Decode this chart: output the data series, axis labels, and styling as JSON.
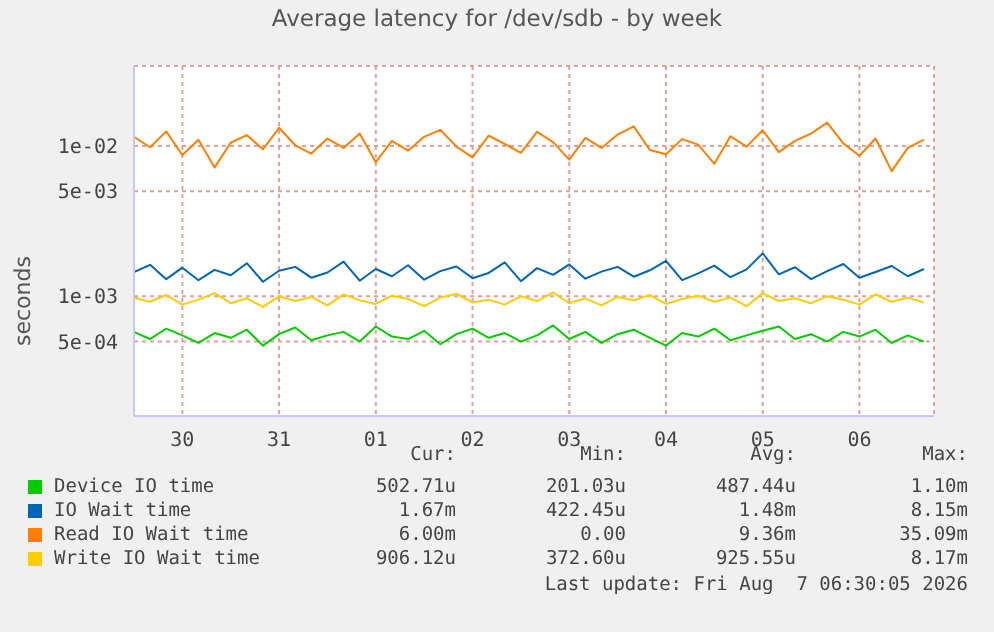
{
  "chart_data": {
    "type": "line",
    "title": "Average latency for /dev/sdb - by week",
    "ylabel": "seconds",
    "log": "y",
    "grid": true,
    "legend": "bottom",
    "marker": "none",
    "x": [
      "2026-07-30T00:00",
      "2026-07-30T04:00",
      "2026-07-30T08:00",
      "2026-07-30T12:00",
      "2026-07-30T16:00",
      "2026-07-30T20:00",
      "2026-07-31T00:00",
      "2026-07-31T04:00",
      "2026-07-31T08:00",
      "2026-07-31T12:00",
      "2026-07-31T16:00",
      "2026-07-31T20:00",
      "2026-08-01T00:00",
      "2026-08-01T04:00",
      "2026-08-01T08:00",
      "2026-08-01T12:00",
      "2026-08-01T16:00",
      "2026-08-01T20:00",
      "2026-08-02T00:00",
      "2026-08-02T04:00",
      "2026-08-02T08:00",
      "2026-08-02T12:00",
      "2026-08-02T16:00",
      "2026-08-02T20:00",
      "2026-08-03T00:00",
      "2026-08-03T04:00",
      "2026-08-03T08:00",
      "2026-08-03T12:00",
      "2026-08-03T16:00",
      "2026-08-03T20:00",
      "2026-08-04T00:00",
      "2026-08-04T04:00",
      "2026-08-04T08:00",
      "2026-08-04T12:00",
      "2026-08-04T16:00",
      "2026-08-04T20:00",
      "2026-08-05T00:00",
      "2026-08-05T04:00",
      "2026-08-05T08:00",
      "2026-08-05T12:00",
      "2026-08-05T16:00",
      "2026-08-05T20:00",
      "2026-08-06T00:00",
      "2026-08-06T04:00",
      "2026-08-06T08:00",
      "2026-08-06T12:00",
      "2026-08-06T16:00",
      "2026-08-06T20:00",
      "2026-08-07T00:00",
      "2026-08-07T04:00"
    ],
    "xlim": [
      "2026-07-30T00:00",
      "2026-08-07T06:30"
    ],
    "xticks": [
      {
        "value": "2026-07-30T12:00",
        "label": "30"
      },
      {
        "value": "2026-07-31T12:00",
        "label": "31"
      },
      {
        "value": "2026-08-01T12:00",
        "label": "01"
      },
      {
        "value": "2026-08-02T12:00",
        "label": "02"
      },
      {
        "value": "2026-08-03T12:00",
        "label": "03"
      },
      {
        "value": "2026-08-04T12:00",
        "label": "04"
      },
      {
        "value": "2026-08-05T12:00",
        "label": "05"
      },
      {
        "value": "2026-08-06T12:00",
        "label": "06"
      }
    ],
    "ylim": [
      0.00016,
      0.034
    ],
    "yticks": [
      {
        "value": 0.0005,
        "label": "5e-04"
      },
      {
        "value": 0.001,
        "label": "1e-03"
      },
      {
        "value": 0.005,
        "label": "5e-03"
      },
      {
        "value": 0.01,
        "label": "1e-02"
      }
    ],
    "series": [
      {
        "name": "Device IO time",
        "color": "#00cc00",
        "values": [
          0.00058,
          0.00052,
          0.00061,
          0.00055,
          0.00049,
          0.00057,
          0.00053,
          0.0006,
          0.00047,
          0.00056,
          0.00062,
          0.00051,
          0.00055,
          0.00058,
          0.0005,
          0.00063,
          0.00054,
          0.00052,
          0.00059,
          0.00048,
          0.00056,
          0.00061,
          0.00053,
          0.00057,
          0.0005,
          0.00055,
          0.00064,
          0.00052,
          0.00058,
          0.00049,
          0.00056,
          0.0006,
          0.00053,
          0.00047,
          0.00057,
          0.00054,
          0.00061,
          0.00051,
          0.00055,
          0.00059,
          0.00063,
          0.00052,
          0.00056,
          0.0005,
          0.00058,
          0.00054,
          0.0006,
          0.00049,
          0.00055,
          0.0005
        ]
      },
      {
        "name": "IO Wait time",
        "color": "#0066b3",
        "values": [
          0.00145,
          0.00162,
          0.0013,
          0.00155,
          0.00128,
          0.0015,
          0.00138,
          0.00166,
          0.00125,
          0.00148,
          0.00157,
          0.00133,
          0.00144,
          0.0017,
          0.00127,
          0.00152,
          0.00136,
          0.00161,
          0.00129,
          0.00147,
          0.00158,
          0.00132,
          0.00143,
          0.00168,
          0.00126,
          0.00154,
          0.00139,
          0.00163,
          0.00131,
          0.00146,
          0.00157,
          0.00135,
          0.00149,
          0.00172,
          0.00128,
          0.00142,
          0.0016,
          0.00134,
          0.00151,
          0.00193,
          0.0014,
          0.00156,
          0.0013,
          0.00147,
          0.00164,
          0.00133,
          0.00145,
          0.00159,
          0.00136,
          0.00152
        ]
      },
      {
        "name": "Read IO Wait time",
        "color": "#ff8000",
        "values": [
          0.0115,
          0.0098,
          0.0125,
          0.0087,
          0.011,
          0.0072,
          0.0105,
          0.0118,
          0.0095,
          0.0132,
          0.0101,
          0.0089,
          0.0112,
          0.0097,
          0.0121,
          0.0078,
          0.0108,
          0.0093,
          0.0115,
          0.0128,
          0.0099,
          0.0084,
          0.0117,
          0.0103,
          0.009,
          0.0124,
          0.0106,
          0.0081,
          0.0113,
          0.0097,
          0.0119,
          0.0135,
          0.0094,
          0.0088,
          0.0111,
          0.0102,
          0.0076,
          0.0116,
          0.0099,
          0.0127,
          0.0091,
          0.0108,
          0.0121,
          0.0143,
          0.0104,
          0.0086,
          0.0112,
          0.0068,
          0.0097,
          0.011
        ]
      },
      {
        "name": "Write IO Wait time",
        "color": "#ffcc00",
        "values": [
          0.00098,
          0.00092,
          0.00102,
          0.00088,
          0.00095,
          0.00105,
          0.0009,
          0.00097,
          0.00085,
          0.001,
          0.00093,
          0.00099,
          0.00087,
          0.00103,
          0.00094,
          0.00089,
          0.00101,
          0.00096,
          0.00086,
          0.00098,
          0.00104,
          0.00091,
          0.00095,
          0.00088,
          0.001,
          0.00093,
          0.00106,
          0.0009,
          0.00097,
          0.00087,
          0.00099,
          0.00094,
          0.00102,
          0.00089,
          0.00096,
          0.00101,
          0.00092,
          0.00098,
          0.00086,
          0.00105,
          0.00093,
          0.00097,
          0.0009,
          0.001,
          0.00095,
          0.00088,
          0.00103,
          0.00092,
          0.00098,
          0.00091
        ]
      }
    ],
    "annotations": [
      "Cur:",
      "Min:",
      "Avg:",
      "Max:",
      "502.71u",
      "201.03u",
      "487.44u",
      "1.10m",
      "1.67m",
      "422.45u",
      "1.48m",
      "8.15m",
      "6.00m",
      "0.00",
      "9.36m",
      "35.09m",
      "906.12u",
      "372.60u",
      "925.55u",
      "8.17m",
      "Last update: Fri Aug  7 06:30:05 2026"
    ]
  }
}
